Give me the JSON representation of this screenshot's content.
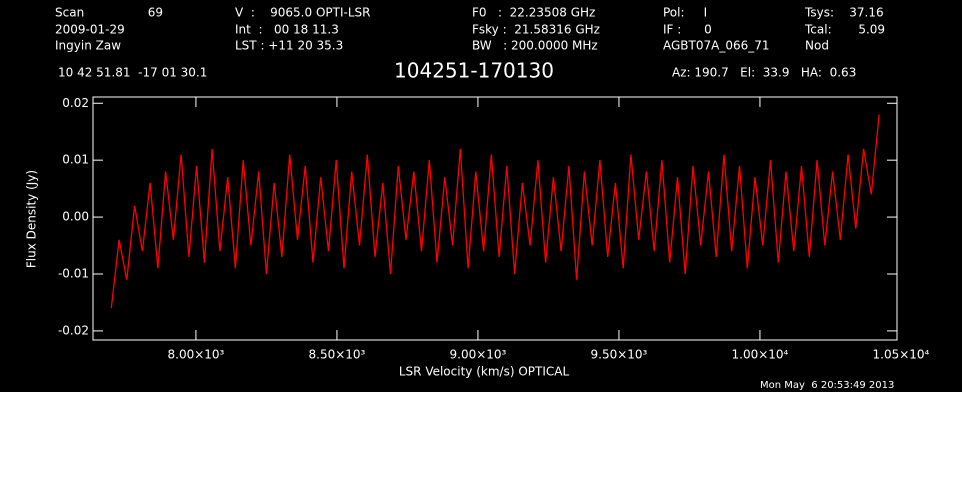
{
  "header": {
    "scan_label": "Scan",
    "scan": "69",
    "date": "2009-01-29",
    "observer": "Ingyin Zaw",
    "velocity": "V  :    9065.0 OPTI-LSR",
    "int": "Int  :   00 18 11.3",
    "lst": "LST : +11 20 35.3",
    "f0": "F0   :  22.23508 GHz",
    "fsky": "Fsky :  21.58316 GHz",
    "bw": "BW   : 200.0000 MHz",
    "pol": "Pol:     I",
    "if": "IF :      0",
    "project": "AGBT07A_066_71",
    "tsys": "Tsys:    37.16",
    "tcal": "Tcal:       5.09",
    "proc": "Nod",
    "coords": "10 42 51.81  -17 01 30.1",
    "azel": "Az: 190.7   El:  33.9   HA:  0.63",
    "timestamp": "Mon May  6 20:53:49 2013"
  },
  "chart_data": {
    "type": "line",
    "title": "104251-170130",
    "x_label": "LSR Velocity (km/s) OPTICAL",
    "y_label": "Flux Density (Jy)",
    "xlim": [
      7635,
      10486
    ],
    "ylim": [
      -0.0216,
      0.0211
    ],
    "xticks": [
      {
        "value": 8000,
        "label": "8.00×10³"
      },
      {
        "value": 8500,
        "label": "8.50×10³"
      },
      {
        "value": 9000,
        "label": "9.00×10³"
      },
      {
        "value": 9500,
        "label": "9.50×10³"
      },
      {
        "value": 10000,
        "label": "1.00×10⁴"
      },
      {
        "value": 10500,
        "label": "1.05×10⁴"
      }
    ],
    "yticks": [
      -0.02,
      -0.01,
      {
        "value": 0,
        "label": "0.00"
      },
      0.01,
      0.02
    ],
    "grid": false,
    "series": [
      {
        "color": "#ff0000",
        "x": [
          7700,
          7727.5,
          7755,
          7782.5,
          7810,
          7837.5,
          7865,
          7892.5,
          7920,
          7947.5,
          7975,
          8002.5,
          8030,
          8057.5,
          8085,
          8112.5,
          8140,
          8167.5,
          8195,
          8222.5,
          8250,
          8277.5,
          8305,
          8332.5,
          8360,
          8387.5,
          8415,
          8442.5,
          8470,
          8497.5,
          8525,
          8552.5,
          8580,
          8607.5,
          8635,
          8662.5,
          8690,
          8717.5,
          8745,
          8772.5,
          8800,
          8827.5,
          8855,
          8882.5,
          8910,
          8937.5,
          8965,
          8992.5,
          9020,
          9047.5,
          9075,
          9102.5,
          9130,
          9157.5,
          9185,
          9212.5,
          9240,
          9267.5,
          9295,
          9322.5,
          9350,
          9377.5,
          9405,
          9432.5,
          9460,
          9487.5,
          9515,
          9542.5,
          9570,
          9597.5,
          9625,
          9652.5,
          9680,
          9707.5,
          9735,
          9762.5,
          9790,
          9817.5,
          9845,
          9872.5,
          9900,
          9927.5,
          9955,
          9982.5,
          10010,
          10037.5,
          10065,
          10092.5,
          10120,
          10147.5,
          10175,
          10202.5,
          10230,
          10257.5,
          10285,
          10312.5,
          10340,
          10367.5,
          10395,
          10422.5
        ],
        "values": [
          -0.016,
          -0.004,
          -0.011,
          0.002,
          -0.006,
          0.006,
          -0.009,
          0.008,
          -0.004,
          0.011,
          -0.007,
          0.009,
          -0.008,
          0.012,
          -0.006,
          0.007,
          -0.009,
          0.01,
          -0.005,
          0.008,
          -0.01,
          0.006,
          -0.007,
          0.011,
          -0.004,
          0.009,
          -0.008,
          0.007,
          -0.006,
          0.01,
          -0.009,
          0.008,
          -0.005,
          0.011,
          -0.007,
          0.006,
          -0.01,
          0.009,
          -0.004,
          0.008,
          -0.006,
          0.01,
          -0.008,
          0.007,
          -0.005,
          0.012,
          -0.009,
          0.008,
          -0.006,
          0.011,
          -0.007,
          0.009,
          -0.01,
          0.006,
          -0.005,
          0.01,
          -0.008,
          0.007,
          -0.006,
          0.009,
          -0.011,
          0.008,
          -0.005,
          0.01,
          -0.007,
          0.006,
          -0.009,
          0.011,
          -0.004,
          0.008,
          -0.006,
          0.01,
          -0.008,
          0.007,
          -0.01,
          0.009,
          -0.005,
          0.008,
          -0.007,
          0.011,
          -0.006,
          0.009,
          -0.009,
          0.007,
          -0.005,
          0.01,
          -0.008,
          0.008,
          -0.006,
          0.009,
          -0.007,
          0.01,
          -0.005,
          0.008,
          -0.004,
          0.011,
          -0.002,
          0.012,
          0.004,
          0.018
        ]
      }
    ]
  }
}
